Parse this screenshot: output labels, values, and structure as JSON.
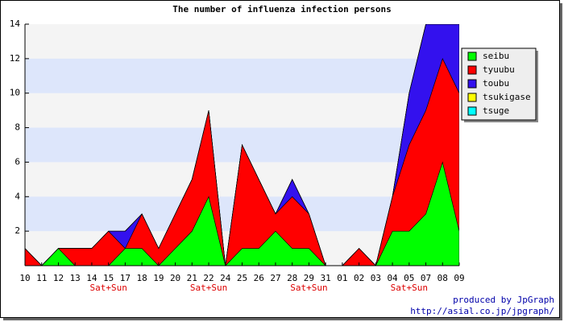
{
  "chart_data": {
    "type": "stacked-area",
    "title": "The number of influenza infection persons",
    "categories": [
      "10",
      "11",
      "12",
      "13",
      "14",
      "15",
      "17",
      "18",
      "19",
      "20",
      "21",
      "22",
      "24",
      "25",
      "26",
      "27",
      "28",
      "29",
      "31",
      "01",
      "02",
      "03",
      "04",
      "05",
      "07",
      "08",
      "09"
    ],
    "category_notes": [
      null,
      null,
      null,
      null,
      null,
      "Sat+Sun",
      null,
      null,
      null,
      null,
      null,
      "Sat+Sun",
      null,
      null,
      null,
      null,
      null,
      "Sat+Sun",
      null,
      null,
      null,
      null,
      null,
      "Sat+Sun",
      null,
      null,
      null
    ],
    "series": [
      {
        "name": "seibu",
        "color": "#00ff00",
        "values": [
          0,
          0,
          1,
          0,
          0,
          0,
          1,
          1,
          0,
          1,
          2,
          4,
          0,
          1,
          1,
          2,
          1,
          1,
          0,
          0,
          0,
          0,
          2,
          2,
          3,
          6,
          2
        ]
      },
      {
        "name": "tyuubu",
        "color": "#ff0000",
        "values": [
          1,
          0,
          0,
          1,
          1,
          2,
          0,
          2,
          1,
          2,
          3,
          5,
          0,
          6,
          4,
          1,
          3,
          2,
          0,
          0,
          1,
          0,
          2,
          5,
          6,
          6,
          8
        ]
      },
      {
        "name": "toubu",
        "color": "#3311ee",
        "values": [
          0,
          0,
          0,
          0,
          0,
          0,
          1,
          0,
          0,
          0,
          0,
          0,
          0,
          0,
          0,
          0,
          1,
          0,
          0,
          0,
          0,
          0,
          0,
          3,
          5,
          2,
          4
        ]
      },
      {
        "name": "tsukigase",
        "color": "#ffff00",
        "values": [
          0,
          0,
          0,
          0,
          0,
          0,
          0,
          0,
          0,
          0,
          0,
          0,
          0,
          0,
          0,
          0,
          0,
          0,
          0,
          0,
          0,
          0,
          0,
          0,
          0,
          0,
          0
        ]
      },
      {
        "name": "tsuge",
        "color": "#00ffff",
        "values": [
          0,
          0,
          0,
          0,
          0,
          0,
          0,
          0,
          0,
          0,
          0,
          0,
          0,
          0,
          0,
          0,
          0,
          0,
          0,
          0,
          0,
          0,
          0,
          0,
          0,
          0,
          0
        ]
      }
    ],
    "ylim": [
      0,
      14
    ],
    "yticks": [
      2,
      4,
      6,
      8,
      10,
      12,
      14
    ],
    "grid_bands": true,
    "legend": "top-right",
    "credits": [
      "produced by JpGraph",
      "http://asial.co.jp/jpgraph/"
    ]
  }
}
